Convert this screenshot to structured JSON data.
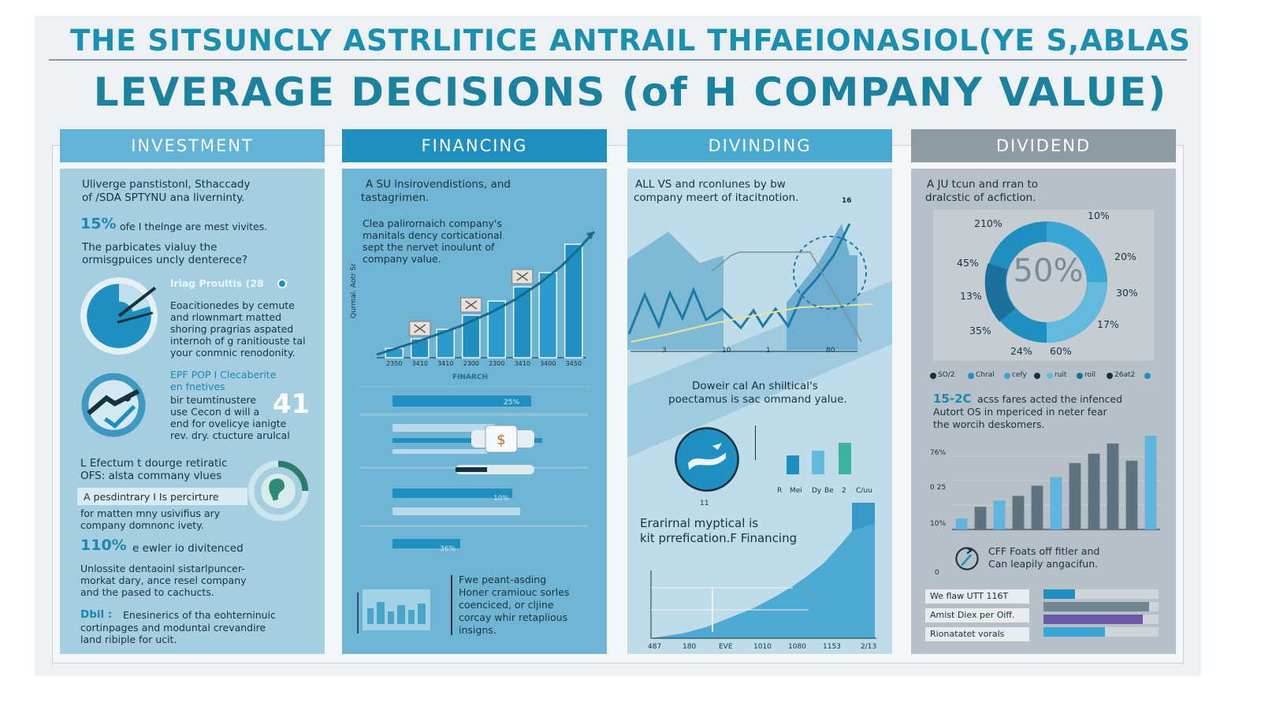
{
  "header": {
    "title": "THE SITSUNCLY ASTRLITICE ANTRAIL THFAEIONASIOL(YE S,ABLAS",
    "subtitle": "LEVERAGE DECISIONS (of H COMPANY VALUE)"
  },
  "colors": {
    "accent": "#1d86b1",
    "dark": "#17323e",
    "investment_bg": "#a5cfe0",
    "financing_bg": "#6fb4d2",
    "dividing_bg": "#bfdce9",
    "dividend_bg": "#b6c0c6"
  },
  "columns": {
    "investment": {
      "heading": "INVESTMENT",
      "intro": [
        "Uliverge panstistonl, Sthaccady",
        "of /SDA SPTYNU ana liverninty."
      ],
      "stat": {
        "value": "15%",
        "text": "ofe I thelnge are mest vivites."
      },
      "para": [
        "The parbicates vialuy the",
        "ormisgpuices uncly denterece?"
      ],
      "pie_label": "lriag Proultis (28",
      "pie_text": [
        "Eoacitionedes by cemute",
        "and rlownmart matted",
        "shoring pragrias aspated",
        "internoh of g ranitiouste tal",
        "your conmnic renodonity."
      ],
      "feature2": {
        "title": [
          "EPF POP I Clecaberite",
          "en fnetives"
        ],
        "text": [
          "bir teumtinustere",
          "use Cecon d will a",
          "end for ovelicye ianigte",
          "rev. dry. ctucture arulcal"
        ],
        "value": "41"
      },
      "effect": {
        "title": [
          "L Efectum t dourge retiratic",
          "OFS: alsta commany vlues"
        ]
      },
      "quote": "A pesdintrary I Is percirture",
      "quote_more": [
        "for matten mny usivifius ary",
        "company domnonc ivety."
      ],
      "stat2": {
        "value": "110%",
        "text": "e ewler io divitenced"
      },
      "para2": [
        "Unlossite dentaoinl sistarlpuncer-",
        "morkat dary, ance resel company",
        "and the pased to cachucts."
      ],
      "foot": {
        "label": "Dbil :",
        "text": [
          "Enesinerics of tha eohterninuic",
          "cortinpages and moduntal crevandire",
          "land ribiple for ucit."
        ]
      }
    },
    "financing": {
      "heading": "FINANCING",
      "intro": [
        "A SU lnsirovendistions, and",
        "tastagrimen."
      ],
      "note": [
        "Clea palirornaich company's",
        "manitals dency corticational",
        "sept the nervet inoulunt of",
        "company value."
      ],
      "y_axis_label": "Qurmal. Aotr Sr",
      "mini_label": "FINARCH",
      "row_values": [
        "25%",
        "10%",
        "36%"
      ],
      "foot_text": [
        "Fwe peant-asding",
        "Honer cramiouc sorles",
        "coenciced, or cljine",
        "corcay whir retaplious",
        "insigns."
      ],
      "chart_data": {
        "type": "bar",
        "categories": [
          "2350",
          "3410",
          "3410",
          "2300",
          "2300",
          "3410",
          "3400",
          "3450"
        ],
        "values": [
          1,
          2,
          3,
          4.5,
          6,
          7.5,
          9,
          12
        ],
        "title": "",
        "xlabel": "",
        "ylabel": "Qurmal. Aotr Sr"
      }
    },
    "dividing": {
      "heading": "DIVINDING",
      "intro": [
        "ALL VS and rconlunes by bw",
        "company meert of itacitnotion."
      ],
      "corner_value": "16",
      "chart_ticks": [
        "3",
        "10",
        "1",
        "80"
      ],
      "mid_text": [
        "Doweir cal An shiltical's",
        "poectamus is sac ommand yalue."
      ],
      "small_bars_label": [
        "R",
        "Mei",
        "Dy",
        "Be",
        "2",
        "C/uu"
      ],
      "globe_value": "11",
      "lower_text": [
        "Erarirnal myptical is",
        "kit prrefication.F Financing"
      ],
      "bottom_ticks": [
        "487",
        "180",
        "EVE",
        "1010",
        "1080",
        "1153",
        "2/13"
      ]
    },
    "dividend": {
      "heading": "DIVIDEND",
      "intro": [
        "A JU tcun and rran to",
        "dralcstic of acfiction."
      ],
      "donut_center": "50%",
      "donut_labels": [
        "210%",
        "10%",
        "45%",
        "20%",
        "13%",
        "30%",
        "35%",
        "17%",
        "24%",
        "60%"
      ],
      "legend": [
        "SO/2",
        "Chral",
        "cefy",
        "ruit",
        "roil",
        "26at2",
        ""
      ],
      "stat_value": "15-2C",
      "stat_text": [
        "acss fares acted the infenced",
        "Autort OS in mpericed in neter fear",
        "the worcih deskomers."
      ],
      "y_ticks": [
        "76%",
        "0 25",
        "10%",
        "0"
      ],
      "cff_text": [
        "CFF Foats off fitler and",
        "Can leapily angacifun."
      ],
      "table": [
        "We flaw UTT 116T",
        "Amist Diex per Oiff.",
        "Rionatatet vorals"
      ],
      "chart_data": {
        "type": "bar",
        "categories": [
          "1",
          "2",
          "3",
          "4",
          "5",
          "6",
          "7",
          "8",
          "9",
          "10",
          "11"
        ],
        "values": [
          14,
          29,
          37,
          43,
          56,
          67,
          85,
          97,
          110,
          88,
          120
        ],
        "title": "",
        "xlabel": "",
        "ylabel": ""
      }
    }
  }
}
